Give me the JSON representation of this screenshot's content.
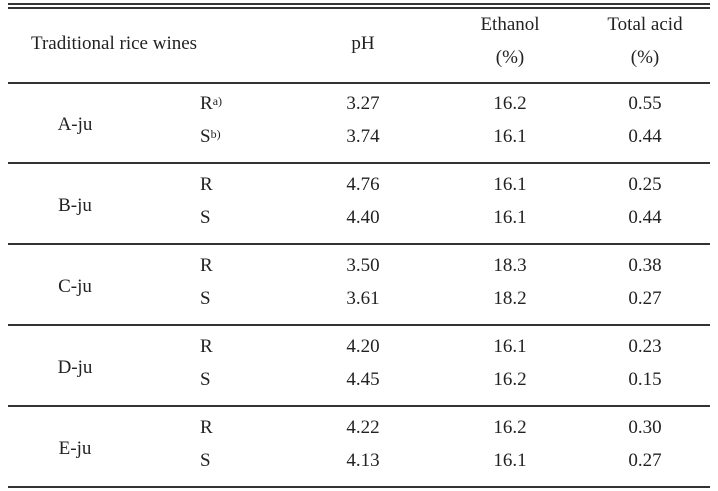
{
  "header": {
    "wines": "Traditional rice wines",
    "ph": "pH",
    "ethanol": "Ethanol",
    "ethanol_unit": "(%)",
    "acid": "Total acid",
    "acid_unit": "(%)"
  },
  "groups": [
    {
      "name": "A-ju",
      "rows": [
        {
          "sample": "R",
          "sup": "a)",
          "ph": "3.27",
          "ethanol": "16.2",
          "acid": "0.55"
        },
        {
          "sample": "S",
          "sup": "b)",
          "ph": "3.74",
          "ethanol": "16.1",
          "acid": "0.44"
        }
      ]
    },
    {
      "name": "B-ju",
      "rows": [
        {
          "sample": "R",
          "ph": "4.76",
          "ethanol": "16.1",
          "acid": "0.25"
        },
        {
          "sample": "S",
          "ph": "4.40",
          "ethanol": "16.1",
          "acid": "0.44"
        }
      ]
    },
    {
      "name": "C-ju",
      "rows": [
        {
          "sample": "R",
          "ph": "3.50",
          "ethanol": "18.3",
          "acid": "0.38"
        },
        {
          "sample": "S",
          "ph": "3.61",
          "ethanol": "18.2",
          "acid": "0.27"
        }
      ]
    },
    {
      "name": "D-ju",
      "rows": [
        {
          "sample": "R",
          "ph": "4.20",
          "ethanol": "16.1",
          "acid": "0.23"
        },
        {
          "sample": "S",
          "ph": "4.45",
          "ethanol": "16.2",
          "acid": "0.15"
        }
      ]
    },
    {
      "name": "E-ju",
      "rows": [
        {
          "sample": "R",
          "ph": "4.22",
          "ethanol": "16.2",
          "acid": "0.30"
        },
        {
          "sample": "S",
          "ph": "4.13",
          "ethanol": "16.1",
          "acid": "0.27"
        }
      ]
    }
  ]
}
